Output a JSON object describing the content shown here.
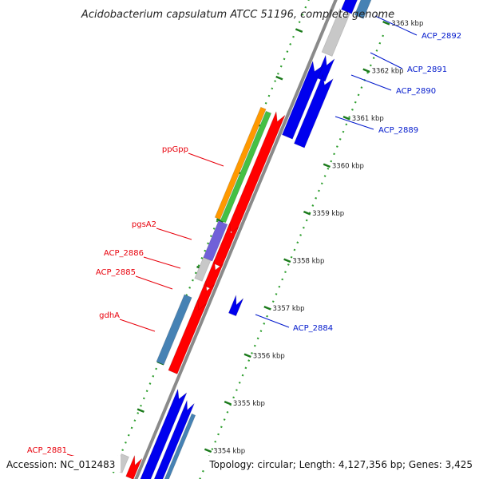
{
  "map": {
    "title": "Acidobacterium capsulatum ATCC 51196, complete genome",
    "accession": "Accession: NC_012483",
    "summary": "Topology: circular; Length: 4,127,356 bp; Genes: 3,425"
  },
  "ticks": [
    {
      "label": "3363 kbp"
    },
    {
      "label": "3362 kbp"
    },
    {
      "label": "3361 kbp"
    },
    {
      "label": "3360 kbp"
    },
    {
      "label": "3359 kbp"
    },
    {
      "label": "3358 kbp"
    },
    {
      "label": "3357 kbp"
    },
    {
      "label": "3356 kbp"
    },
    {
      "label": "3355 kbp"
    },
    {
      "label": "3354 kbp"
    }
  ],
  "genes": [
    {
      "label": "ACP_2892",
      "strand": "forward"
    },
    {
      "label": "ACP_2891",
      "strand": "forward"
    },
    {
      "label": "ACP_2890",
      "strand": "forward"
    },
    {
      "label": "ACP_2889",
      "strand": "forward"
    },
    {
      "label": "ppGpp",
      "strand": "reverse"
    },
    {
      "label": "pgsA2",
      "strand": "reverse"
    },
    {
      "label": "ACP_2886",
      "strand": "reverse"
    },
    {
      "label": "ACP_2885",
      "strand": "reverse"
    },
    {
      "label": "gdhA",
      "strand": "reverse"
    },
    {
      "label": "ACP_2884",
      "strand": "forward"
    },
    {
      "label": "ACP_2881",
      "strand": "reverse"
    }
  ],
  "colors": {
    "backbone": "#8a8a8a",
    "cds_reverse": "#ff0000",
    "cds_forward": "#0000ee",
    "label_reverse": "#e8000b",
    "label_forward": "#0018cc",
    "tick_major": "#1a7a1a",
    "tick_minor": "#2e9e2e",
    "gene_steel": "#4682b4",
    "gene_gray": "#c8c8c8",
    "gene_purple": "#7060d8",
    "gene_orange": "#ff9900",
    "gene_green": "#44c044"
  }
}
